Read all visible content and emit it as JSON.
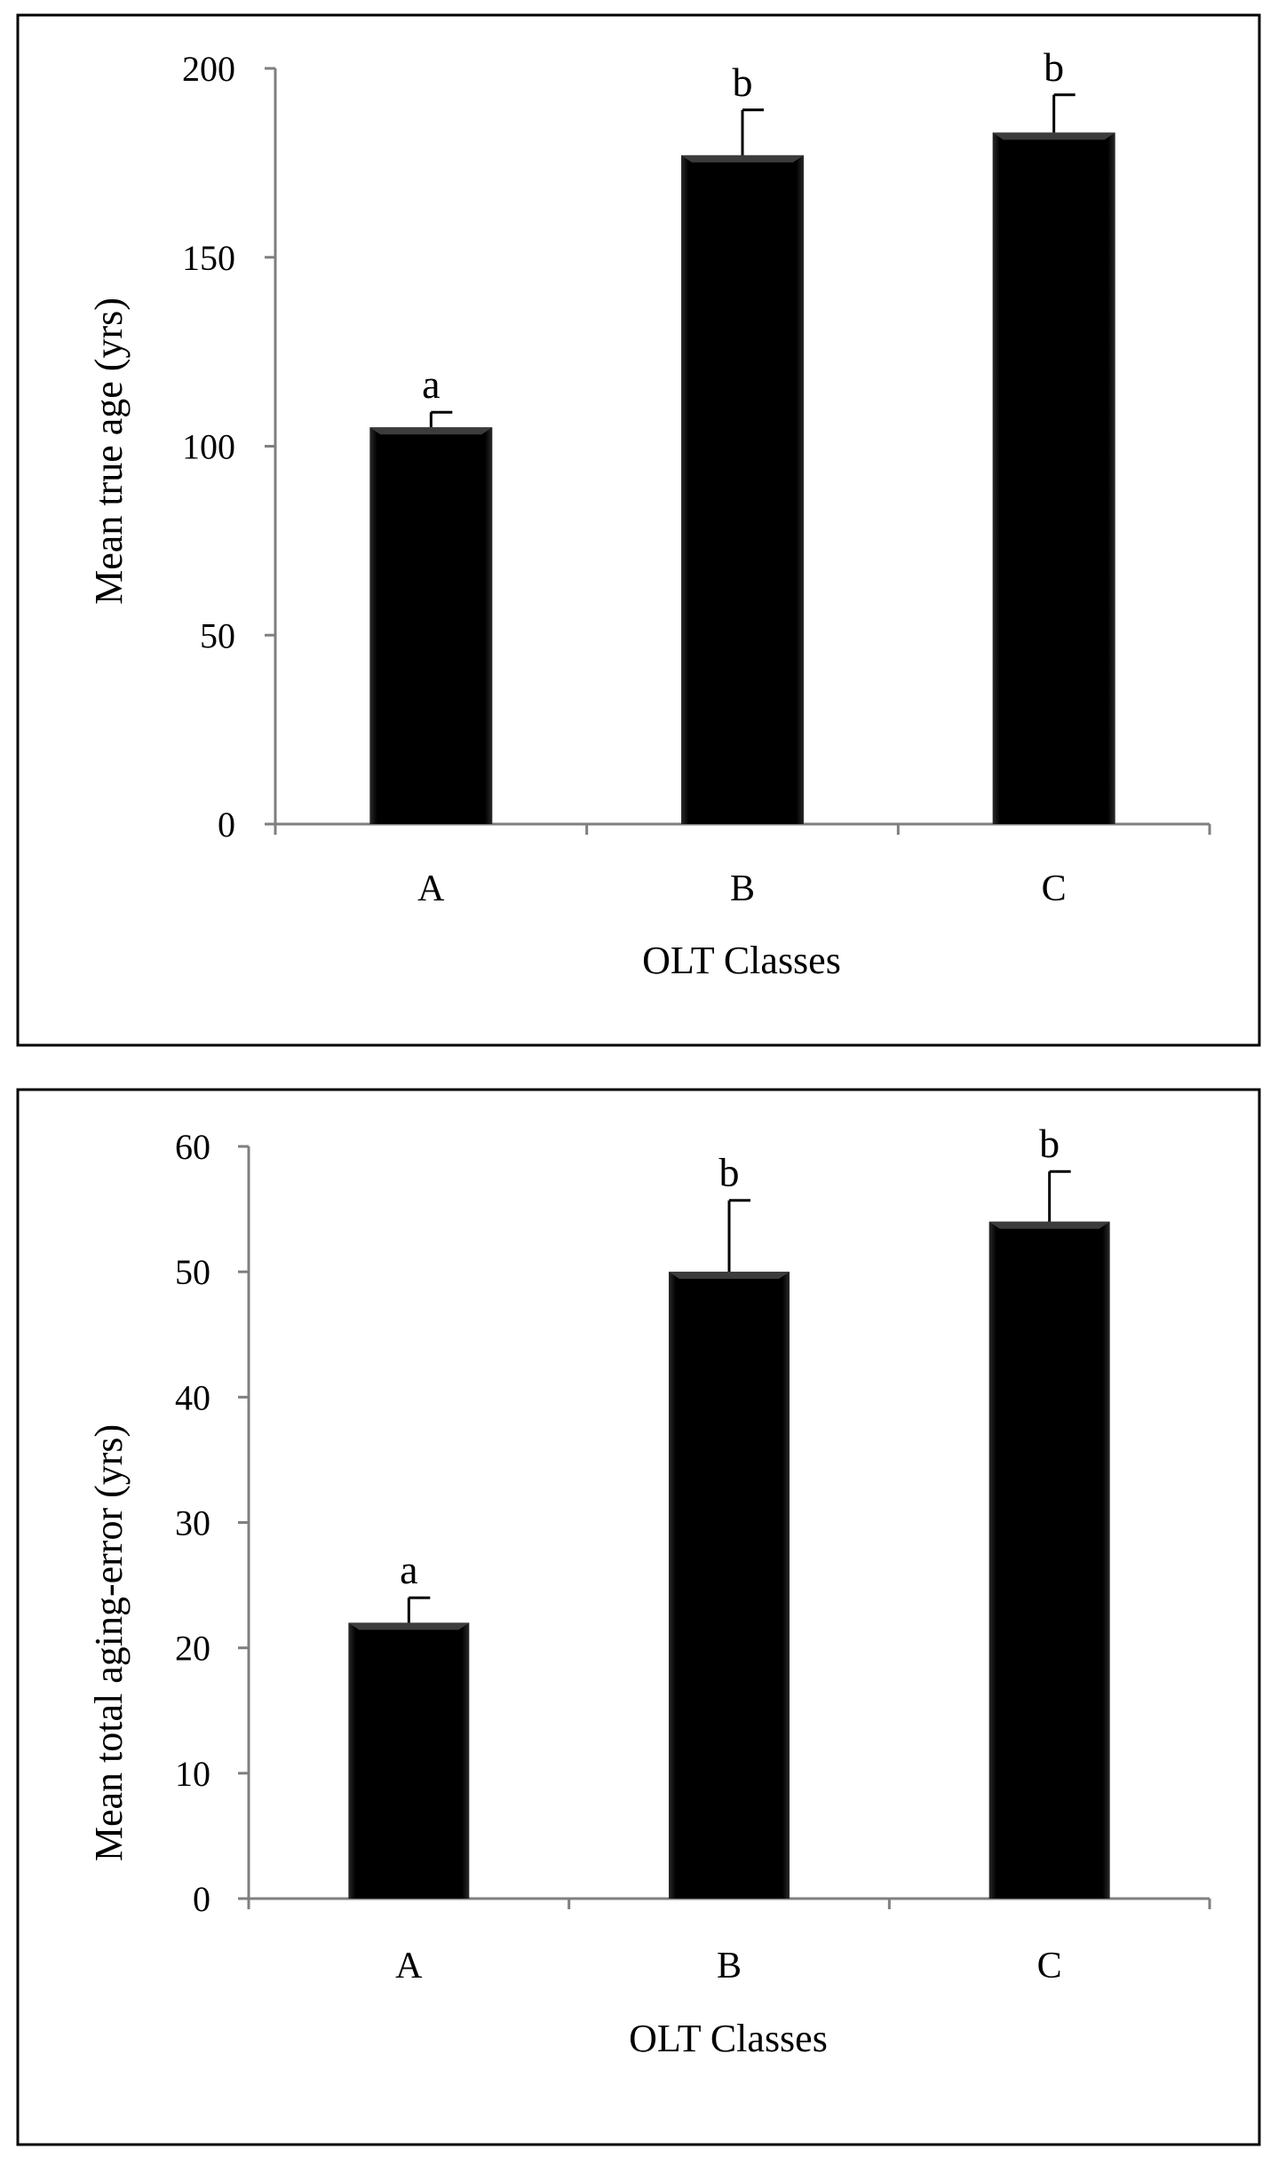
{
  "chart_data": [
    {
      "type": "bar",
      "title": "",
      "xlabel": "OLT Classes",
      "ylabel": "Mean true age (yrs)",
      "categories": [
        "A",
        "B",
        "C"
      ],
      "values": [
        105,
        177,
        183
      ],
      "error_upper": [
        109,
        189,
        193
      ],
      "significance_letters": [
        "a",
        "b",
        "b"
      ],
      "ylim": [
        0,
        200
      ],
      "yticks": [
        0,
        50,
        100,
        150,
        200
      ],
      "bar_color": "#000000",
      "grid": false
    },
    {
      "type": "bar",
      "title": "",
      "xlabel": "OLT Classes",
      "ylabel": "Mean total aging-error (yrs)",
      "categories": [
        "A",
        "B",
        "C"
      ],
      "values": [
        22,
        50,
        54
      ],
      "error_upper": [
        24,
        55.7,
        58
      ],
      "significance_letters": [
        "a",
        "b",
        "b"
      ],
      "ylim": [
        0,
        60
      ],
      "yticks": [
        0,
        10,
        20,
        30,
        40,
        50,
        60
      ],
      "bar_color": "#000000",
      "grid": false
    }
  ]
}
